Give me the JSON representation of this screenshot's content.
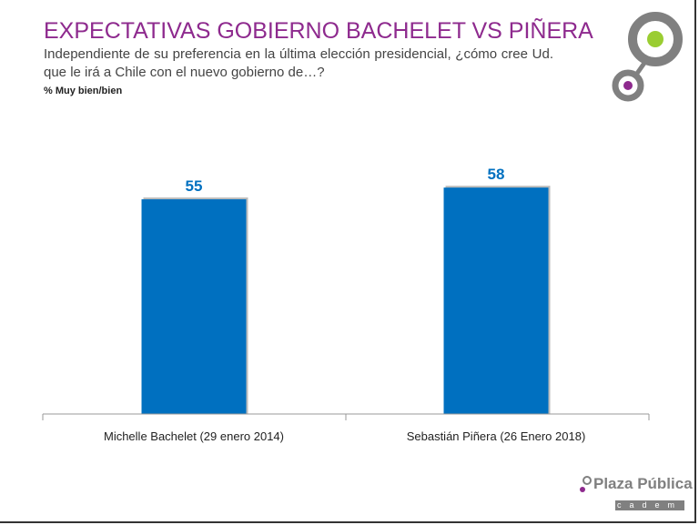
{
  "title": "EXPECTATIVAS GOBIERNO BACHELET VS PIÑERA",
  "subtitle": "Independiente de su preferencia en la última elección presidencial, ¿cómo cree Ud. que le irá a Chile con el nuevo gobierno de…?",
  "measure": "% Muy bien/bien",
  "logo_bottom": {
    "text": "Plaza Pública",
    "sub": "cadem"
  },
  "colors": {
    "bar": "#0070c0",
    "title": "#8e2a8e",
    "logo_green": "#9acd32",
    "logo_purple": "#8e2a8e",
    "logo_gray": "#808080"
  },
  "chart_data": {
    "type": "bar",
    "categories": [
      "Michelle Bachelet (29 enero 2014)",
      "Sebastián Piñera (26 Enero 2018)"
    ],
    "values": [
      55,
      58
    ],
    "title": "",
    "xlabel": "",
    "ylabel": "",
    "data_labels": true,
    "grid": false,
    "legend": "none"
  }
}
